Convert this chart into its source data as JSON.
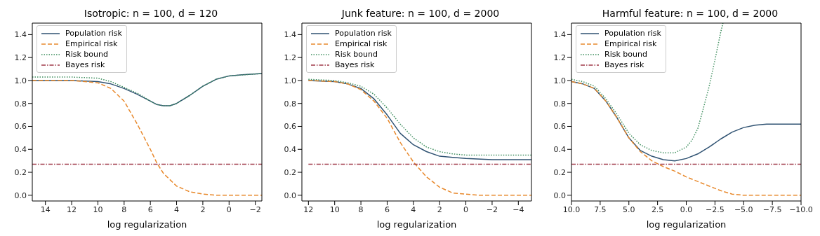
{
  "chart_data": [
    {
      "type": "line",
      "title": "Isotropic: n = 100, d = 120",
      "xlabel": "log regularization",
      "xlim": [
        15,
        -2.5
      ],
      "xticks": [
        14,
        12,
        10,
        8,
        6,
        4,
        2,
        0,
        {
          "value": -2,
          "label": "−2"
        }
      ],
      "ylim": [
        -0.05,
        1.5
      ],
      "yticks": [
        {
          "value": 0,
          "label": "0.0"
        },
        {
          "value": 0.2,
          "label": "0.2"
        },
        {
          "value": 0.4,
          "label": "0.4"
        },
        {
          "value": 0.6,
          "label": "0.6"
        },
        {
          "value": 0.8,
          "label": "0.8"
        },
        {
          "value": 1,
          "label": "1.0"
        },
        {
          "value": 1.2,
          "label": "1.2"
        },
        {
          "value": 1.4,
          "label": "1.4"
        }
      ],
      "grid": false,
      "legend": "top left",
      "series": [
        {
          "name": "Population risk",
          "color": "#2f5272",
          "line_style": "solid",
          "x": [
            15,
            12,
            10,
            9,
            8,
            7,
            6,
            5.5,
            5,
            4.5,
            4,
            3,
            2,
            1,
            0,
            -1,
            -2.5
          ],
          "values": [
            1.0,
            1.0,
            0.99,
            0.97,
            0.93,
            0.88,
            0.82,
            0.79,
            0.78,
            0.78,
            0.8,
            0.87,
            0.95,
            1.01,
            1.04,
            1.05,
            1.06
          ]
        },
        {
          "name": "Empirical risk",
          "color": "#e8892c",
          "line_style": "dashed",
          "x": [
            15,
            12,
            11,
            10,
            9,
            8,
            7,
            6,
            5.5,
            5,
            4,
            3,
            2,
            1,
            -2.5
          ],
          "values": [
            1.0,
            1.0,
            0.99,
            0.98,
            0.93,
            0.82,
            0.62,
            0.4,
            0.28,
            0.19,
            0.08,
            0.03,
            0.01,
            0.0,
            0.0
          ]
        },
        {
          "name": "Risk bound",
          "color": "#3f8f5f",
          "line_style": "dotted",
          "x": [
            15,
            12,
            10,
            9,
            8,
            7,
            6,
            5.5,
            5,
            4.5,
            4,
            3,
            2,
            1,
            0,
            -2.5
          ],
          "values": [
            1.03,
            1.03,
            1.02,
            0.99,
            0.94,
            0.89,
            0.82,
            0.79,
            0.78,
            0.78,
            0.8,
            0.87,
            0.95,
            1.01,
            1.04,
            1.06
          ]
        },
        {
          "name": "Bayes risk",
          "color": "#a03a4a",
          "line_style": "dashdot",
          "x": [
            15,
            -2.5
          ],
          "values": [
            0.27,
            0.27
          ]
        }
      ]
    },
    {
      "type": "line",
      "title": "Junk feature: n = 100, d = 2000",
      "xlabel": "log regularization",
      "xlim": [
        12.5,
        -5
      ],
      "xticks": [
        12,
        10,
        8,
        6,
        4,
        2,
        0,
        {
          "value": -2,
          "label": "−2"
        },
        {
          "value": -4,
          "label": "−4"
        }
      ],
      "ylim": [
        -0.05,
        1.5
      ],
      "yticks": [
        {
          "value": 0,
          "label": "0.0"
        },
        {
          "value": 0.2,
          "label": "0.2"
        },
        {
          "value": 0.4,
          "label": "0.4"
        },
        {
          "value": 0.6,
          "label": "0.6"
        },
        {
          "value": 0.8,
          "label": "0.8"
        },
        {
          "value": 1,
          "label": "1.0"
        },
        {
          "value": 1.2,
          "label": "1.2"
        },
        {
          "value": 1.4,
          "label": "1.4"
        }
      ],
      "grid": false,
      "legend": "top left",
      "series": [
        {
          "name": "Population risk",
          "color": "#2f5272",
          "line_style": "solid",
          "x": [
            12,
            10,
            9,
            8,
            7,
            6,
            5,
            4,
            3,
            2,
            1,
            0,
            -2,
            -5
          ],
          "values": [
            1.0,
            0.99,
            0.97,
            0.93,
            0.84,
            0.7,
            0.54,
            0.44,
            0.38,
            0.34,
            0.33,
            0.32,
            0.31,
            0.31
          ]
        },
        {
          "name": "Empirical risk",
          "color": "#e8892c",
          "line_style": "dashed",
          "x": [
            12,
            10,
            9,
            8,
            7,
            6,
            5,
            4,
            3,
            2,
            1,
            0,
            -1,
            -5
          ],
          "values": [
            1.0,
            0.99,
            0.97,
            0.92,
            0.82,
            0.67,
            0.46,
            0.29,
            0.16,
            0.07,
            0.02,
            0.01,
            0.0,
            0.0
          ]
        },
        {
          "name": "Risk bound",
          "color": "#3f8f5f",
          "line_style": "dotted",
          "x": [
            12,
            10,
            9,
            8,
            7,
            6,
            5,
            4,
            3,
            2,
            1,
            0,
            -2,
            -5
          ],
          "values": [
            1.01,
            1.0,
            0.98,
            0.95,
            0.88,
            0.76,
            0.62,
            0.5,
            0.42,
            0.38,
            0.36,
            0.35,
            0.35,
            0.35
          ]
        },
        {
          "name": "Bayes risk",
          "color": "#a03a4a",
          "line_style": "dashdot",
          "x": [
            12,
            -5
          ],
          "values": [
            0.27,
            0.27
          ]
        }
      ]
    },
    {
      "type": "line",
      "title": "Harmful feature: n = 100, d = 2000",
      "xlabel": "log regularization",
      "xlim": [
        10,
        -10
      ],
      "xticks": [
        {
          "value": 10,
          "label": "10.0"
        },
        {
          "value": 7.5,
          "label": "7.5"
        },
        {
          "value": 5,
          "label": "5.0"
        },
        {
          "value": 2.5,
          "label": "2.5"
        },
        {
          "value": 0,
          "label": "0.0"
        },
        {
          "value": -2.5,
          "label": "−2.5"
        },
        {
          "value": -5,
          "label": "−5.0"
        },
        {
          "value": -7.5,
          "label": "−7.5"
        },
        {
          "value": -10,
          "label": "−10.0"
        }
      ],
      "ylim": [
        -0.05,
        1.5
      ],
      "yticks": [
        {
          "value": 0,
          "label": "0.0"
        },
        {
          "value": 0.2,
          "label": "0.2"
        },
        {
          "value": 0.4,
          "label": "0.4"
        },
        {
          "value": 0.6,
          "label": "0.6"
        },
        {
          "value": 0.8,
          "label": "0.8"
        },
        {
          "value": 1,
          "label": "1.0"
        },
        {
          "value": 1.2,
          "label": "1.2"
        },
        {
          "value": 1.4,
          "label": "1.4"
        }
      ],
      "grid": false,
      "legend": "top left",
      "series": [
        {
          "name": "Population risk",
          "color": "#2f5272",
          "line_style": "solid",
          "x": [
            10,
            9,
            8,
            7,
            6,
            5,
            4,
            3,
            2,
            1,
            0,
            -1,
            -2,
            -3,
            -4,
            -5,
            -6,
            -7,
            -8,
            -10
          ],
          "values": [
            0.99,
            0.97,
            0.93,
            0.82,
            0.67,
            0.5,
            0.39,
            0.34,
            0.31,
            0.3,
            0.32,
            0.36,
            0.42,
            0.49,
            0.55,
            0.59,
            0.61,
            0.62,
            0.62,
            0.62
          ]
        },
        {
          "name": "Empirical risk",
          "color": "#e8892c",
          "line_style": "dashed",
          "x": [
            10,
            9,
            8,
            7,
            6,
            5,
            4,
            3,
            2,
            1,
            0,
            -1,
            -2,
            -3,
            -4,
            -5,
            -10
          ],
          "values": [
            0.99,
            0.97,
            0.93,
            0.82,
            0.67,
            0.5,
            0.38,
            0.3,
            0.25,
            0.21,
            0.16,
            0.12,
            0.08,
            0.04,
            0.01,
            0.0,
            0.0
          ]
        },
        {
          "name": "Risk bound",
          "color": "#3f8f5f",
          "line_style": "dotted",
          "x": [
            10,
            9,
            8,
            7,
            6,
            5,
            4,
            3,
            2,
            1,
            0,
            -0.5,
            -1,
            -1.5,
            -2,
            -2.5,
            -3,
            -3.2
          ],
          "values": [
            1.01,
            0.99,
            0.95,
            0.84,
            0.7,
            0.54,
            0.44,
            0.39,
            0.37,
            0.37,
            0.42,
            0.48,
            0.58,
            0.76,
            0.95,
            1.18,
            1.42,
            1.5
          ]
        },
        {
          "name": "Bayes risk",
          "color": "#a03a4a",
          "line_style": "dashdot",
          "x": [
            10,
            -10
          ],
          "values": [
            0.27,
            0.27
          ]
        }
      ]
    }
  ]
}
